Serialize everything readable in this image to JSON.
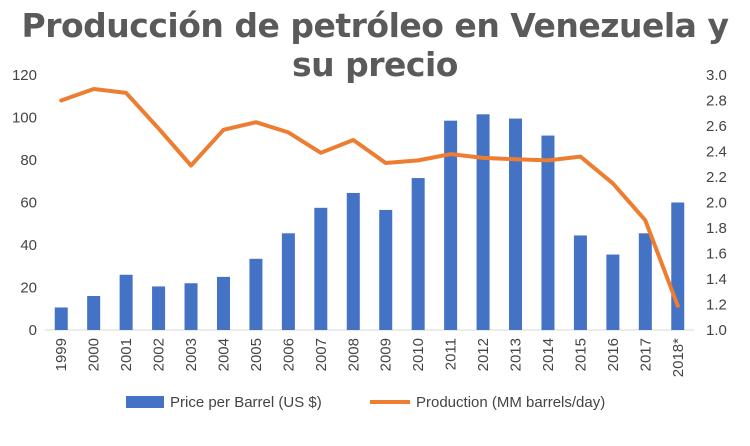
{
  "chart_data": {
    "type": "bar+line",
    "title": "Producción de petróleo en Venezuela y su precio",
    "categories": [
      "1999",
      "2000",
      "2001",
      "2002",
      "2003",
      "2004",
      "2005",
      "2006",
      "2007",
      "2008",
      "2009",
      "2010",
      "2011",
      "2012",
      "2013",
      "2014",
      "2015",
      "2016",
      "2017",
      "2018*"
    ],
    "series": [
      {
        "name": "Price per Barrel  (US $)",
        "type": "bar",
        "axis": "left",
        "color": "#4472c4",
        "values": [
          10.6,
          16,
          26,
          20.5,
          22,
          25,
          33.5,
          45.5,
          57.5,
          64.5,
          56.5,
          71.5,
          98.5,
          101.5,
          99.5,
          91.5,
          44.5,
          35.5,
          45.5,
          60
        ]
      },
      {
        "name": "Production  (MM barrels/day)",
        "type": "line",
        "axis": "right",
        "color": "#ed7d31",
        "values": [
          2.8,
          2.89,
          2.86,
          2.58,
          2.29,
          2.57,
          2.63,
          2.55,
          2.39,
          2.49,
          2.31,
          2.33,
          2.38,
          2.35,
          2.34,
          2.33,
          2.36,
          2.15,
          1.86,
          1.19
        ]
      }
    ],
    "left_axis": {
      "min": 0,
      "max": 120,
      "step": 20,
      "ticks": [
        "0",
        "20",
        "40",
        "60",
        "80",
        "100",
        "120"
      ]
    },
    "right_axis": {
      "min": 1.0,
      "max": 3.0,
      "step": 0.2,
      "ticks": [
        "1.0",
        "1.2",
        "1.4",
        "1.6",
        "1.8",
        "2.0",
        "2.2",
        "2.4",
        "2.6",
        "2.8",
        "3.0"
      ]
    },
    "grid": false,
    "legend_position": "bottom"
  }
}
